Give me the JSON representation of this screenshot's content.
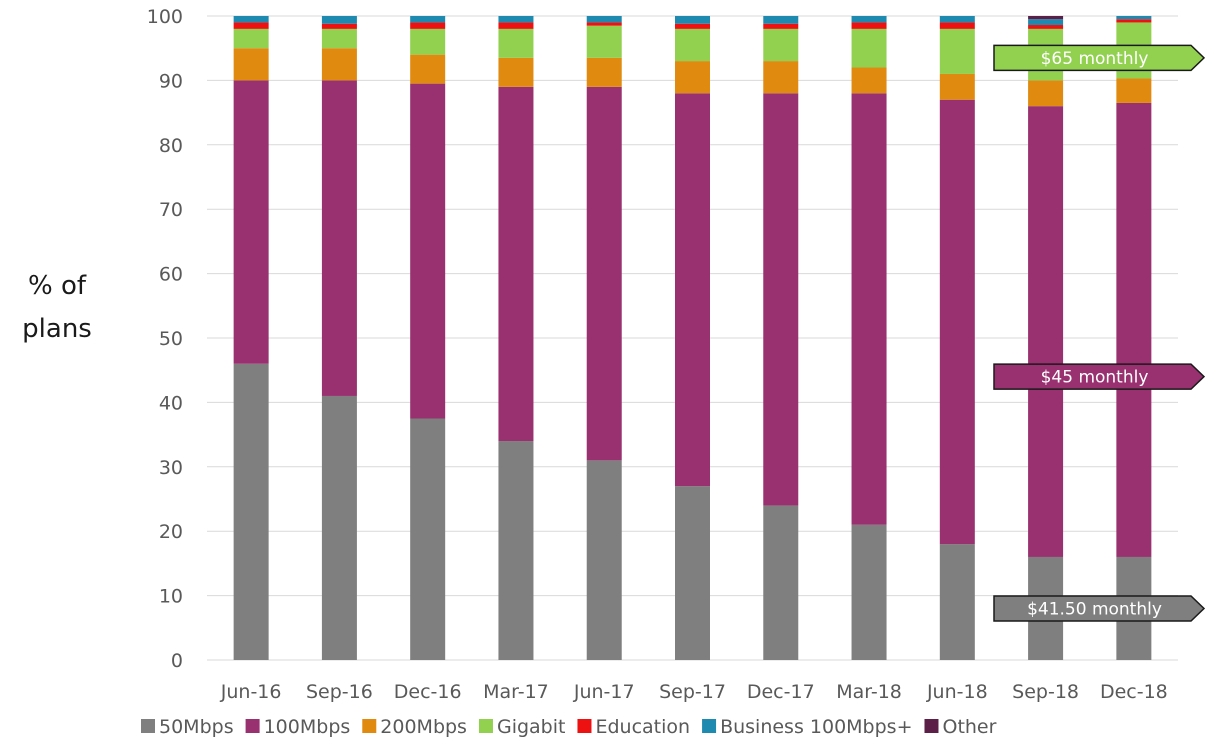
{
  "chart_data": {
    "type": "bar",
    "stacked": true,
    "ylabel": [
      "% of",
      "plans"
    ],
    "ylim": [
      0,
      100
    ],
    "yticks": [
      0,
      10,
      20,
      30,
      40,
      50,
      60,
      70,
      80,
      90,
      100
    ],
    "grid": "horizontal",
    "legend_position": "bottom",
    "categories": [
      "Jun-16",
      "Sep-16",
      "Dec-16",
      "Mar-17",
      "Jun-17",
      "Sep-17",
      "Dec-17",
      "Mar-18",
      "Jun-18",
      "Sep-18",
      "Dec-18"
    ],
    "series": [
      {
        "name": "50Mbps",
        "color": "#7f7f7f",
        "values": [
          46,
          41,
          37.5,
          34,
          31,
          27,
          24,
          21,
          18,
          16,
          16
        ]
      },
      {
        "name": "100Mbps",
        "color": "#993070",
        "values": [
          44,
          49,
          52,
          55,
          58,
          61,
          64,
          67,
          69,
          70,
          70.5
        ]
      },
      {
        "name": "200Mbps",
        "color": "#e08a10",
        "values": [
          5,
          5,
          4.5,
          4.5,
          4.5,
          5,
          5,
          4,
          4,
          4,
          3.8
        ]
      },
      {
        "name": "Gigabit",
        "color": "#92d050",
        "values": [
          3,
          3,
          4,
          4.5,
          5,
          5,
          5,
          6,
          7,
          8,
          8.7
        ]
      },
      {
        "name": "Education",
        "color": "#ee1111",
        "values": [
          1,
          0.8,
          1,
          1,
          0.5,
          0.8,
          0.8,
          1,
          1,
          0.6,
          0.5
        ]
      },
      {
        "name": "Business 100Mbps+",
        "color": "#1f8ab0",
        "values": [
          1,
          1.2,
          1,
          1,
          1,
          1.2,
          1.2,
          1,
          1,
          0.9,
          0.5
        ]
      },
      {
        "name": "Other",
        "color": "#5c1f48",
        "values": [
          0,
          0,
          0,
          0,
          0,
          0,
          0,
          0,
          0,
          0.5,
          0
        ]
      }
    ],
    "annotations": [
      {
        "text": "$65 monthly",
        "value": 93.5,
        "color": "#92d050"
      },
      {
        "text": "$45 monthly",
        "value": 44,
        "color": "#993070"
      },
      {
        "text": "$41.50 monthly",
        "value": 8,
        "color": "#7f7f7f"
      }
    ]
  }
}
